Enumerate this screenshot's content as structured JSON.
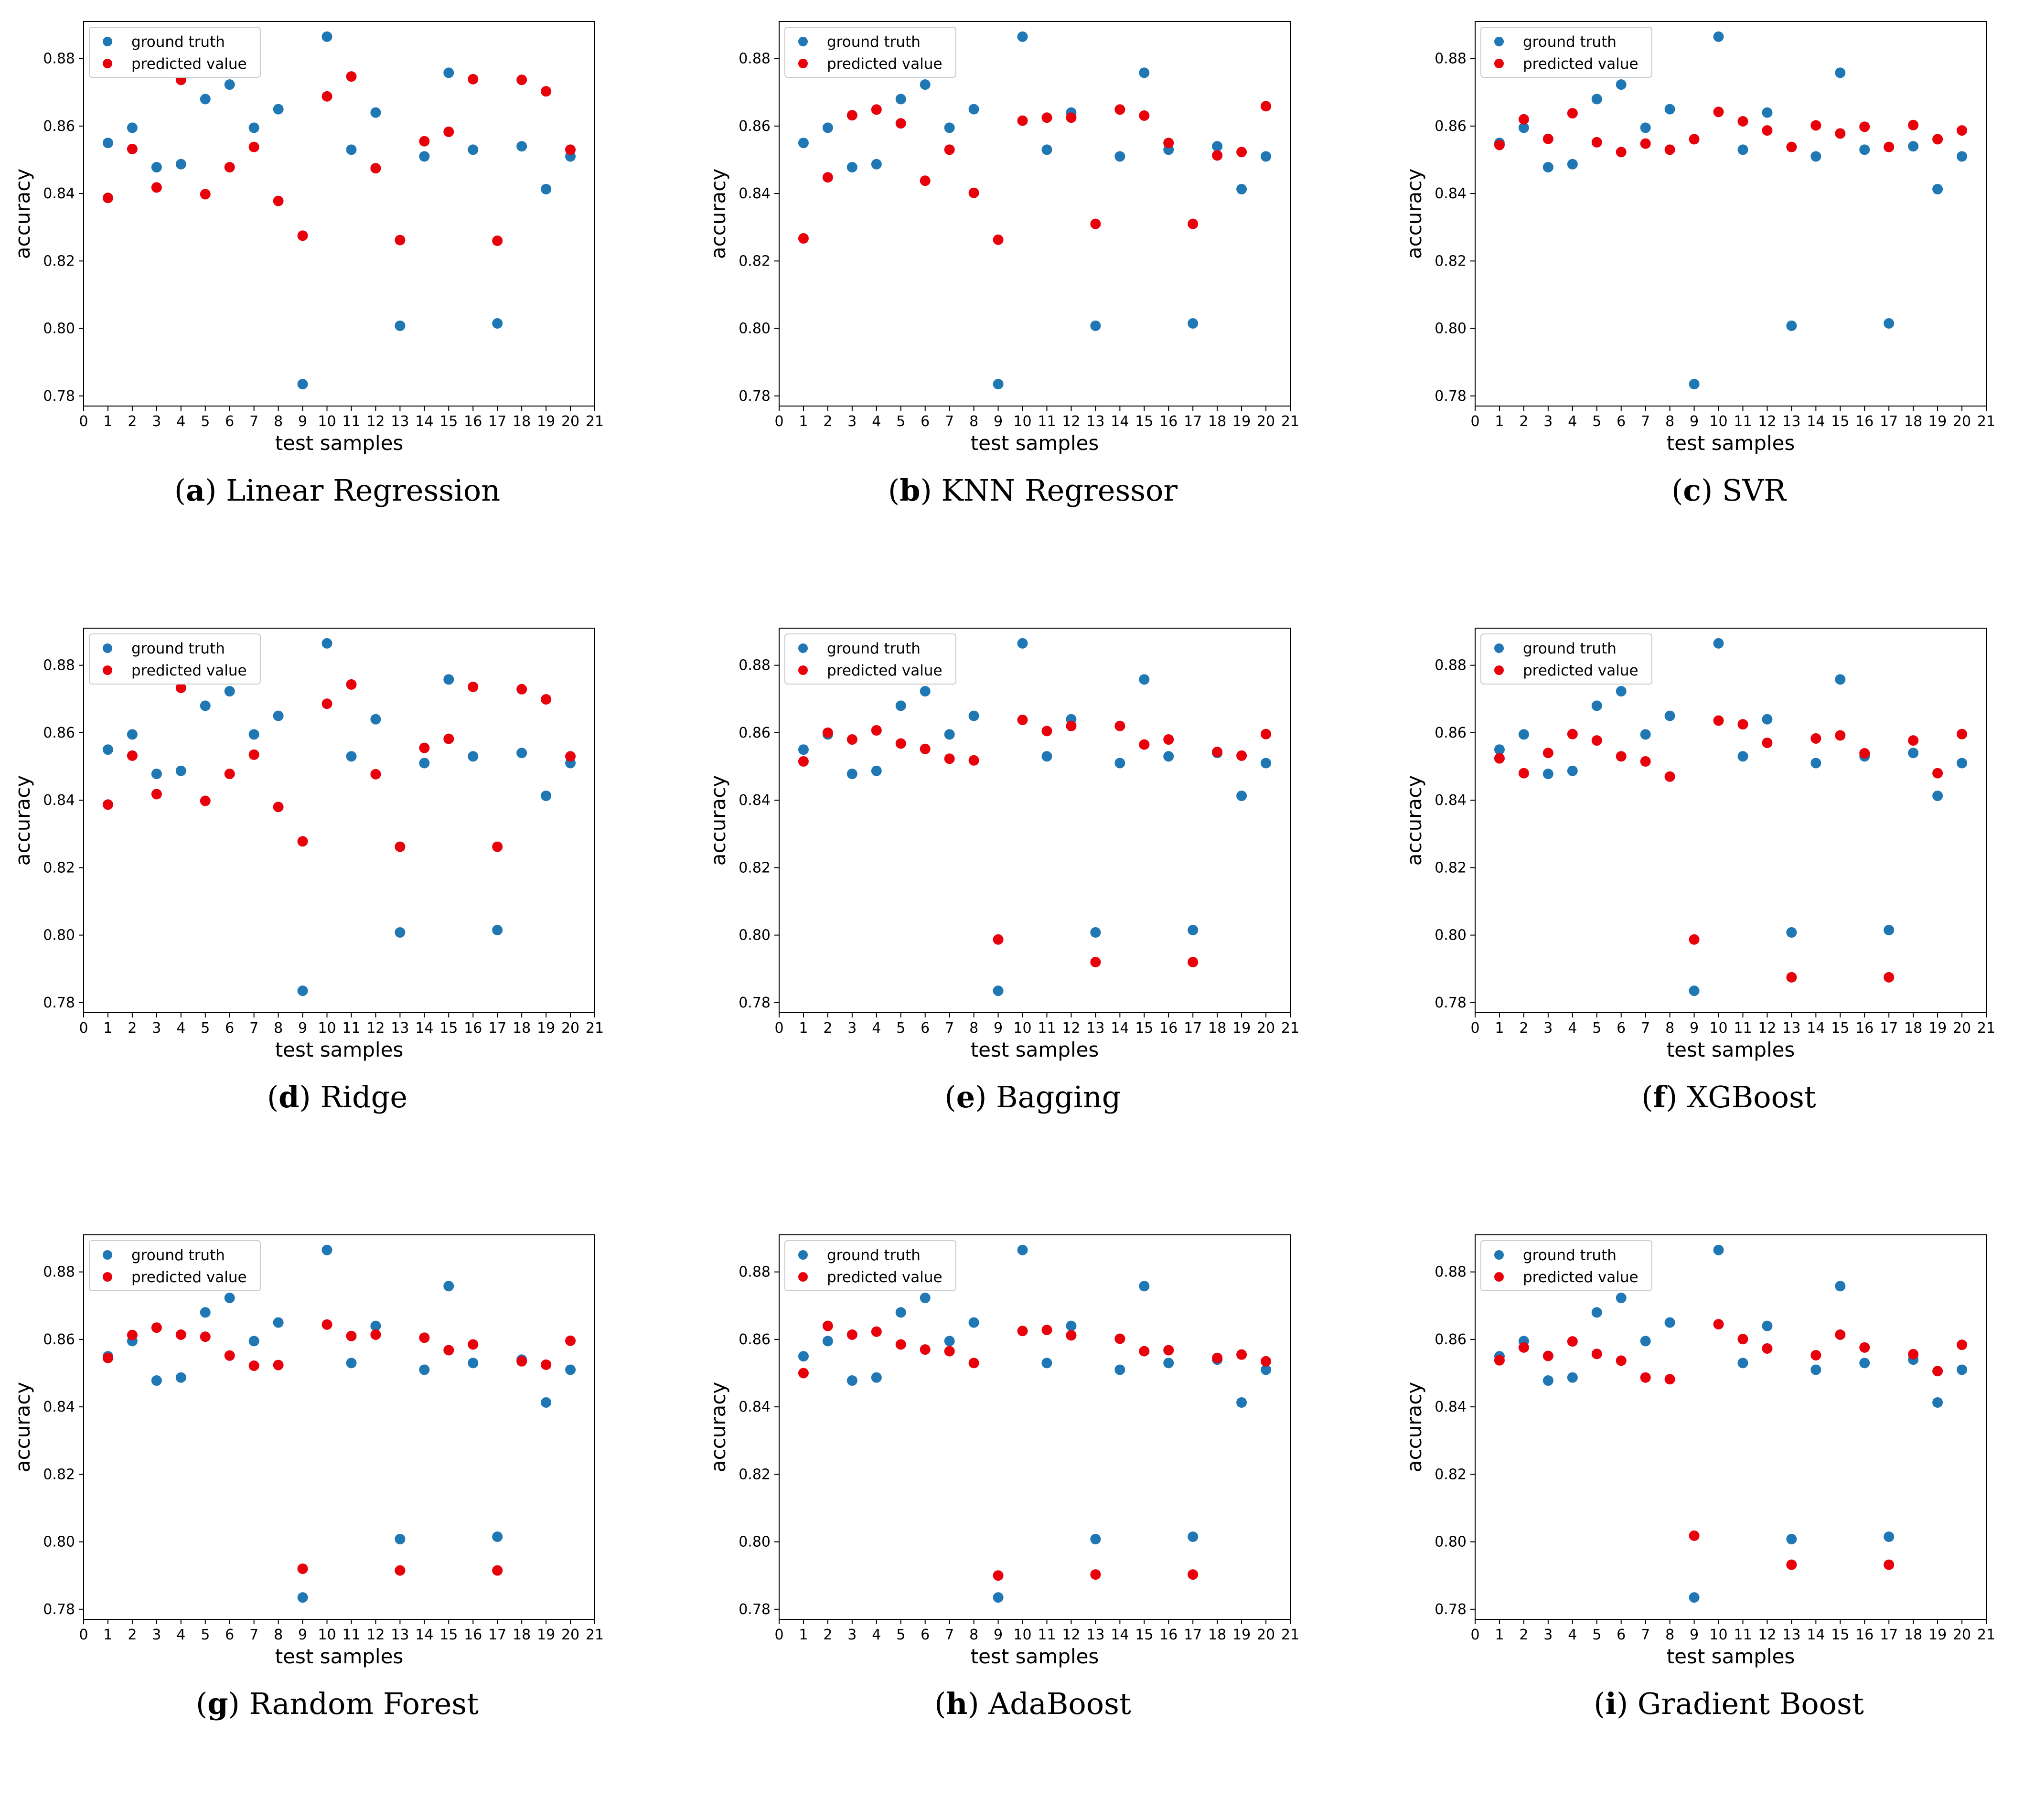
{
  "chart_data": [
    {
      "type": "scatter",
      "letter": "a",
      "title": "Linear Regression",
      "xlabel": "test samples",
      "ylabel": "accuracy",
      "xlim": [
        0,
        21
      ],
      "ylim": [
        0.777,
        0.891
      ],
      "xticks": [
        0,
        1,
        2,
        3,
        4,
        5,
        6,
        7,
        8,
        9,
        10,
        11,
        12,
        13,
        14,
        15,
        16,
        17,
        18,
        19,
        20,
        21
      ],
      "yticks": [
        0.78,
        0.8,
        0.82,
        0.84,
        0.86,
        0.88
      ],
      "legend_position": "top-left",
      "colors": {
        "ground_truth": "#1f77b4",
        "predicted": "#e8000b"
      },
      "x": [
        1,
        2,
        3,
        4,
        5,
        6,
        7,
        8,
        9,
        10,
        11,
        12,
        13,
        14,
        15,
        16,
        17,
        18,
        19,
        20
      ],
      "series": [
        {
          "name": "ground truth",
          "values": [
            0.855,
            0.8595,
            0.8478,
            0.8487,
            0.868,
            0.8723,
            0.8595,
            0.865,
            0.7835,
            0.8865,
            0.853,
            0.864,
            0.8008,
            0.851,
            0.8758,
            0.853,
            0.8015,
            0.854,
            0.8413,
            0.851
          ]
        },
        {
          "name": "predicted value",
          "values": [
            0.8387,
            0.8532,
            0.8418,
            0.8737,
            0.8398,
            0.8478,
            0.8538,
            0.8378,
            0.8275,
            0.8688,
            0.8747,
            0.8475,
            0.8262,
            0.8555,
            0.8583,
            0.8739,
            0.826,
            0.8737,
            0.8703,
            0.853
          ]
        }
      ]
    },
    {
      "type": "scatter",
      "letter": "b",
      "title": "KNN Regressor",
      "xlabel": "test samples",
      "ylabel": "accuracy",
      "xlim": [
        0,
        21
      ],
      "ylim": [
        0.777,
        0.891
      ],
      "xticks": [
        0,
        1,
        2,
        3,
        4,
        5,
        6,
        7,
        8,
        9,
        10,
        11,
        12,
        13,
        14,
        15,
        16,
        17,
        18,
        19,
        20,
        21
      ],
      "yticks": [
        0.78,
        0.8,
        0.82,
        0.84,
        0.86,
        0.88
      ],
      "legend_position": "top-left",
      "colors": {
        "ground_truth": "#1f77b4",
        "predicted": "#e8000b"
      },
      "x": [
        1,
        2,
        3,
        4,
        5,
        6,
        7,
        8,
        9,
        10,
        11,
        12,
        13,
        14,
        15,
        16,
        17,
        18,
        19,
        20
      ],
      "series": [
        {
          "name": "ground truth",
          "values": [
            0.855,
            0.8595,
            0.8478,
            0.8487,
            0.868,
            0.8723,
            0.8595,
            0.865,
            0.7835,
            0.8865,
            0.853,
            0.864,
            0.8008,
            0.851,
            0.8758,
            0.853,
            0.8015,
            0.854,
            0.8413,
            0.851
          ]
        },
        {
          "name": "predicted value",
          "values": [
            0.8267,
            0.8448,
            0.8632,
            0.8649,
            0.8608,
            0.8438,
            0.853,
            0.8402,
            0.8263,
            0.8616,
            0.8625,
            0.8625,
            0.831,
            0.8649,
            0.8631,
            0.855,
            0.831,
            0.8513,
            0.8523,
            0.8659
          ]
        }
      ]
    },
    {
      "type": "scatter",
      "letter": "c",
      "title": "SVR",
      "xlabel": "test samples",
      "ylabel": "accuracy",
      "xlim": [
        0,
        21
      ],
      "ylim": [
        0.777,
        0.891
      ],
      "xticks": [
        0,
        1,
        2,
        3,
        4,
        5,
        6,
        7,
        8,
        9,
        10,
        11,
        12,
        13,
        14,
        15,
        16,
        17,
        18,
        19,
        20,
        21
      ],
      "yticks": [
        0.78,
        0.8,
        0.82,
        0.84,
        0.86,
        0.88
      ],
      "legend_position": "top-left",
      "colors": {
        "ground_truth": "#1f77b4",
        "predicted": "#e8000b"
      },
      "x": [
        1,
        2,
        3,
        4,
        5,
        6,
        7,
        8,
        9,
        10,
        11,
        12,
        13,
        14,
        15,
        16,
        17,
        18,
        19,
        20
      ],
      "series": [
        {
          "name": "ground truth",
          "values": [
            0.855,
            0.8595,
            0.8478,
            0.8487,
            0.868,
            0.8723,
            0.8595,
            0.865,
            0.7835,
            0.8865,
            0.853,
            0.864,
            0.8008,
            0.851,
            0.8758,
            0.853,
            0.8015,
            0.854,
            0.8413,
            0.851
          ]
        },
        {
          "name": "predicted value",
          "values": [
            0.8544,
            0.862,
            0.8562,
            0.8638,
            0.8552,
            0.8523,
            0.8548,
            0.853,
            0.8561,
            0.8642,
            0.8614,
            0.8587,
            0.8538,
            0.8602,
            0.8578,
            0.8598,
            0.8538,
            0.8603,
            0.8561,
            0.8587
          ]
        }
      ]
    },
    {
      "type": "scatter",
      "letter": "d",
      "title": "Ridge",
      "xlabel": "test samples",
      "ylabel": "accuracy",
      "xlim": [
        0,
        21
      ],
      "ylim": [
        0.777,
        0.891
      ],
      "xticks": [
        0,
        1,
        2,
        3,
        4,
        5,
        6,
        7,
        8,
        9,
        10,
        11,
        12,
        13,
        14,
        15,
        16,
        17,
        18,
        19,
        20,
        21
      ],
      "yticks": [
        0.78,
        0.8,
        0.82,
        0.84,
        0.86,
        0.88
      ],
      "legend_position": "top-left",
      "colors": {
        "ground_truth": "#1f77b4",
        "predicted": "#e8000b"
      },
      "x": [
        1,
        2,
        3,
        4,
        5,
        6,
        7,
        8,
        9,
        10,
        11,
        12,
        13,
        14,
        15,
        16,
        17,
        18,
        19,
        20
      ],
      "series": [
        {
          "name": "ground truth",
          "values": [
            0.855,
            0.8595,
            0.8478,
            0.8487,
            0.868,
            0.8723,
            0.8595,
            0.865,
            0.7835,
            0.8865,
            0.853,
            0.864,
            0.8008,
            0.851,
            0.8758,
            0.853,
            0.8015,
            0.854,
            0.8413,
            0.851
          ]
        },
        {
          "name": "predicted value",
          "values": [
            0.8387,
            0.8532,
            0.8418,
            0.8733,
            0.8398,
            0.8478,
            0.8535,
            0.838,
            0.8278,
            0.8686,
            0.8743,
            0.8477,
            0.8262,
            0.8555,
            0.8582,
            0.8736,
            0.8262,
            0.8729,
            0.8699,
            0.853
          ]
        }
      ]
    },
    {
      "type": "scatter",
      "letter": "e",
      "title": "Bagging",
      "xlabel": "test samples",
      "ylabel": "accuracy",
      "xlim": [
        0,
        21
      ],
      "ylim": [
        0.777,
        0.891
      ],
      "xticks": [
        0,
        1,
        2,
        3,
        4,
        5,
        6,
        7,
        8,
        9,
        10,
        11,
        12,
        13,
        14,
        15,
        16,
        17,
        18,
        19,
        20,
        21
      ],
      "yticks": [
        0.78,
        0.8,
        0.82,
        0.84,
        0.86,
        0.88
      ],
      "legend_position": "top-left",
      "colors": {
        "ground_truth": "#1f77b4",
        "predicted": "#e8000b"
      },
      "x": [
        1,
        2,
        3,
        4,
        5,
        6,
        7,
        8,
        9,
        10,
        11,
        12,
        13,
        14,
        15,
        16,
        17,
        18,
        19,
        20
      ],
      "series": [
        {
          "name": "ground truth",
          "values": [
            0.855,
            0.8595,
            0.8478,
            0.8487,
            0.868,
            0.8723,
            0.8595,
            0.865,
            0.7835,
            0.8865,
            0.853,
            0.864,
            0.8008,
            0.851,
            0.8758,
            0.853,
            0.8015,
            0.854,
            0.8413,
            0.851
          ]
        },
        {
          "name": "predicted value",
          "values": [
            0.8515,
            0.86,
            0.858,
            0.8607,
            0.8568,
            0.8552,
            0.8523,
            0.8518,
            0.7987,
            0.8638,
            0.8605,
            0.862,
            0.792,
            0.862,
            0.8565,
            0.858,
            0.792,
            0.8543,
            0.8532,
            0.8596
          ]
        }
      ]
    },
    {
      "type": "scatter",
      "letter": "f",
      "title": "XGBoost",
      "xlabel": "test samples",
      "ylabel": "accuracy",
      "xlim": [
        0,
        21
      ],
      "ylim": [
        0.777,
        0.891
      ],
      "xticks": [
        0,
        1,
        2,
        3,
        4,
        5,
        6,
        7,
        8,
        9,
        10,
        11,
        12,
        13,
        14,
        15,
        16,
        17,
        18,
        19,
        20,
        21
      ],
      "yticks": [
        0.78,
        0.8,
        0.82,
        0.84,
        0.86,
        0.88
      ],
      "legend_position": "top-left",
      "colors": {
        "ground_truth": "#1f77b4",
        "predicted": "#e8000b"
      },
      "x": [
        1,
        2,
        3,
        4,
        5,
        6,
        7,
        8,
        9,
        10,
        11,
        12,
        13,
        14,
        15,
        16,
        17,
        18,
        19,
        20
      ],
      "series": [
        {
          "name": "ground truth",
          "values": [
            0.855,
            0.8595,
            0.8478,
            0.8487,
            0.868,
            0.8723,
            0.8595,
            0.865,
            0.7835,
            0.8865,
            0.853,
            0.864,
            0.8008,
            0.851,
            0.8758,
            0.853,
            0.8015,
            0.854,
            0.8413,
            0.851
          ]
        },
        {
          "name": "predicted value",
          "values": [
            0.8524,
            0.848,
            0.854,
            0.8596,
            0.8577,
            0.853,
            0.8515,
            0.847,
            0.7987,
            0.8636,
            0.8625,
            0.857,
            0.7875,
            0.8583,
            0.8592,
            0.8539,
            0.7875,
            0.8577,
            0.848,
            0.8596
          ]
        }
      ]
    },
    {
      "type": "scatter",
      "letter": "g",
      "title": "Random Forest",
      "xlabel": "test samples",
      "ylabel": "accuracy",
      "xlim": [
        0,
        21
      ],
      "ylim": [
        0.777,
        0.891
      ],
      "xticks": [
        0,
        1,
        2,
        3,
        4,
        5,
        6,
        7,
        8,
        9,
        10,
        11,
        12,
        13,
        14,
        15,
        16,
        17,
        18,
        19,
        20,
        21
      ],
      "yticks": [
        0.78,
        0.8,
        0.82,
        0.84,
        0.86,
        0.88
      ],
      "legend_position": "top-left",
      "colors": {
        "ground_truth": "#1f77b4",
        "predicted": "#e8000b"
      },
      "x": [
        1,
        2,
        3,
        4,
        5,
        6,
        7,
        8,
        9,
        10,
        11,
        12,
        13,
        14,
        15,
        16,
        17,
        18,
        19,
        20
      ],
      "series": [
        {
          "name": "ground truth",
          "values": [
            0.855,
            0.8595,
            0.8478,
            0.8487,
            0.868,
            0.8723,
            0.8595,
            0.865,
            0.7835,
            0.8865,
            0.853,
            0.864,
            0.8008,
            0.851,
            0.8758,
            0.853,
            0.8015,
            0.854,
            0.8413,
            0.851
          ]
        },
        {
          "name": "predicted value",
          "values": [
            0.8545,
            0.8613,
            0.8635,
            0.8614,
            0.8608,
            0.8552,
            0.8522,
            0.8524,
            0.792,
            0.8644,
            0.861,
            0.8614,
            0.7915,
            0.8605,
            0.8568,
            0.8585,
            0.7915,
            0.8535,
            0.8525,
            0.8596
          ]
        }
      ]
    },
    {
      "type": "scatter",
      "letter": "h",
      "title": "AdaBoost",
      "xlabel": "test samples",
      "ylabel": "accuracy",
      "xlim": [
        0,
        21
      ],
      "ylim": [
        0.777,
        0.891
      ],
      "xticks": [
        0,
        1,
        2,
        3,
        4,
        5,
        6,
        7,
        8,
        9,
        10,
        11,
        12,
        13,
        14,
        15,
        16,
        17,
        18,
        19,
        20,
        21
      ],
      "yticks": [
        0.78,
        0.8,
        0.82,
        0.84,
        0.86,
        0.88
      ],
      "legend_position": "top-left",
      "colors": {
        "ground_truth": "#1f77b4",
        "predicted": "#e8000b"
      },
      "x": [
        1,
        2,
        3,
        4,
        5,
        6,
        7,
        8,
        9,
        10,
        11,
        12,
        13,
        14,
        15,
        16,
        17,
        18,
        19,
        20
      ],
      "series": [
        {
          "name": "ground truth",
          "values": [
            0.855,
            0.8595,
            0.8478,
            0.8487,
            0.868,
            0.8723,
            0.8595,
            0.865,
            0.7835,
            0.8865,
            0.853,
            0.864,
            0.8008,
            0.851,
            0.8758,
            0.853,
            0.8015,
            0.854,
            0.8413,
            0.851
          ]
        },
        {
          "name": "predicted value",
          "values": [
            0.85,
            0.864,
            0.8614,
            0.8623,
            0.8585,
            0.857,
            0.8565,
            0.853,
            0.79,
            0.8625,
            0.8628,
            0.8612,
            0.7903,
            0.8602,
            0.8565,
            0.8568,
            0.7903,
            0.8545,
            0.8555,
            0.8535
          ]
        }
      ]
    },
    {
      "type": "scatter",
      "letter": "i",
      "title": "Gradient Boost",
      "xlabel": "test samples",
      "ylabel": "accuracy",
      "xlim": [
        0,
        21
      ],
      "ylim": [
        0.777,
        0.891
      ],
      "xticks": [
        0,
        1,
        2,
        3,
        4,
        5,
        6,
        7,
        8,
        9,
        10,
        11,
        12,
        13,
        14,
        15,
        16,
        17,
        18,
        19,
        20,
        21
      ],
      "yticks": [
        0.78,
        0.8,
        0.82,
        0.84,
        0.86,
        0.88
      ],
      "legend_position": "top-left",
      "colors": {
        "ground_truth": "#1f77b4",
        "predicted": "#e8000b"
      },
      "x": [
        1,
        2,
        3,
        4,
        5,
        6,
        7,
        8,
        9,
        10,
        11,
        12,
        13,
        14,
        15,
        16,
        17,
        18,
        19,
        20
      ],
      "series": [
        {
          "name": "ground truth",
          "values": [
            0.855,
            0.8595,
            0.8478,
            0.8487,
            0.868,
            0.8723,
            0.8595,
            0.865,
            0.7835,
            0.8865,
            0.853,
            0.864,
            0.8008,
            0.851,
            0.8758,
            0.853,
            0.8015,
            0.854,
            0.8413,
            0.851
          ]
        },
        {
          "name": "predicted value",
          "values": [
            0.8538,
            0.8576,
            0.8551,
            0.8594,
            0.8557,
            0.8537,
            0.8487,
            0.8482,
            0.8018,
            0.8645,
            0.8601,
            0.8573,
            0.7932,
            0.8553,
            0.8614,
            0.8576,
            0.7932,
            0.8556,
            0.8506,
            0.8584
          ]
        }
      ]
    }
  ]
}
